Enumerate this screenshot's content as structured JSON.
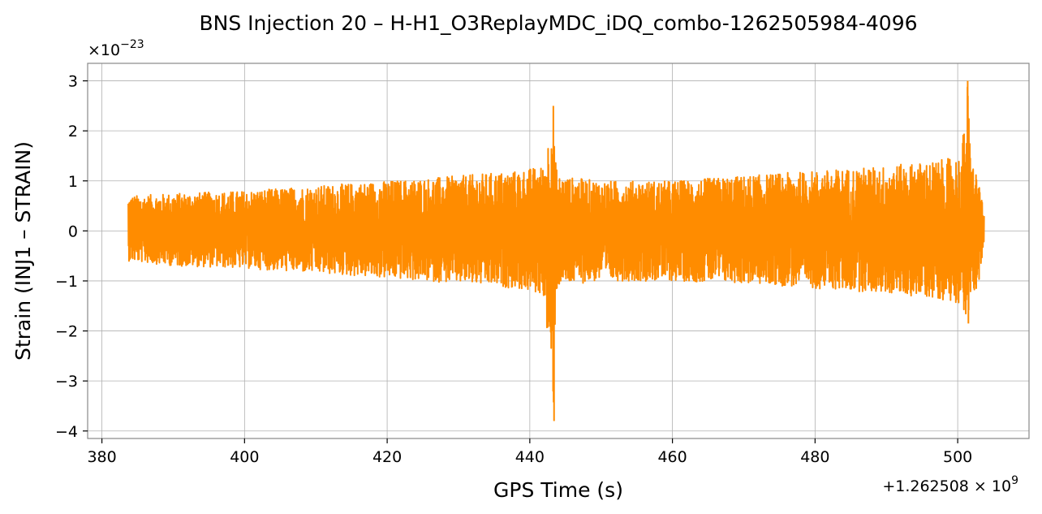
{
  "chart_data": {
    "type": "line",
    "title": "BNS Injection 20 – H-H1_O3ReplayMDC_iDQ_combo-1262505984-4096",
    "xlabel": "GPS Time (s)",
    "ylabel": "Strain (INJ1 – STRAIN)",
    "y_multiplier_base": "×10",
    "y_multiplier_exp": "−23",
    "x_offset_base": "+1.262508 × 10",
    "x_offset_exp": "9",
    "xlim": [
      378,
      510
    ],
    "ylim": [
      -4.15,
      3.35
    ],
    "xticks": [
      380,
      400,
      420,
      440,
      460,
      480,
      500
    ],
    "xtick_labels": [
      "380",
      "400",
      "420",
      "440",
      "460",
      "480",
      "500"
    ],
    "yticks": [
      -4,
      -3,
      -2,
      -1,
      0,
      1,
      2,
      3
    ],
    "ytick_labels": [
      "−4",
      "−3",
      "−2",
      "−1",
      "0",
      "1",
      "2",
      "3"
    ],
    "grid": true,
    "series": [
      {
        "color": "#ff8c00",
        "x_start": 383.7,
        "x_end": 503.7,
        "envelope": {
          "x": [
            383.7,
            390,
            400,
            410,
            420,
            430,
            438,
            442,
            443.3,
            443.6,
            444,
            450,
            460,
            470,
            480,
            490,
            497,
            500.5,
            501.4,
            501.8,
            503.0,
            503.7
          ],
          "upper": [
            0.7,
            0.75,
            0.8,
            0.9,
            1.0,
            1.1,
            1.2,
            1.3,
            2.5,
            1.4,
            1.1,
            1.0,
            1.0,
            1.1,
            1.2,
            1.3,
            1.4,
            1.5,
            3.0,
            1.5,
            1.0,
            0.3
          ],
          "lower": [
            -0.6,
            -0.7,
            -0.75,
            -0.85,
            -0.95,
            -1.05,
            -1.15,
            -1.3,
            -3.8,
            -1.4,
            -1.1,
            -1.0,
            -1.0,
            -1.05,
            -1.15,
            -1.25,
            -1.35,
            -1.45,
            -1.85,
            -1.45,
            -1.0,
            -0.3
          ]
        }
      }
    ]
  }
}
